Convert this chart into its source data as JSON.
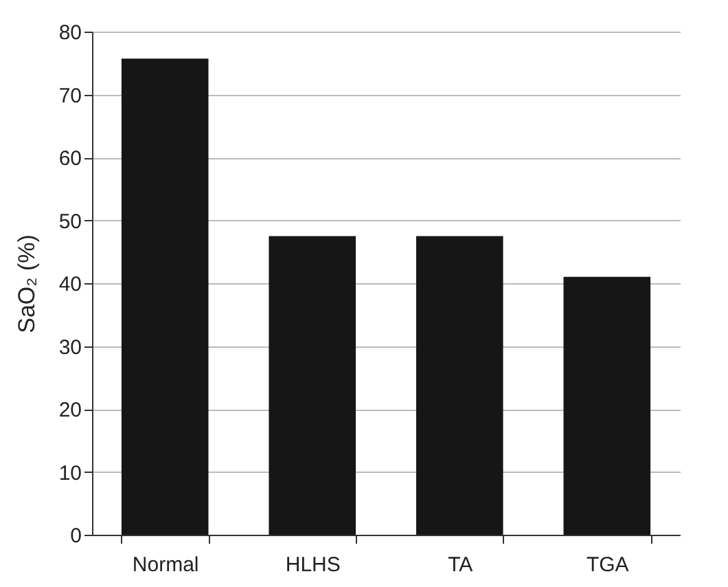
{
  "chart_data": {
    "type": "bar",
    "ylabel": "SaO₂ (%)",
    "categories": [
      "Normal",
      "HLHS",
      "TA",
      "TGA"
    ],
    "values": [
      75.7,
      47.5,
      47.5,
      41
    ],
    "color": "#161616",
    "ylim": [
      0,
      80
    ],
    "yticks": [
      0,
      10,
      20,
      30,
      40,
      50,
      60,
      70,
      80
    ],
    "grid": "y"
  }
}
